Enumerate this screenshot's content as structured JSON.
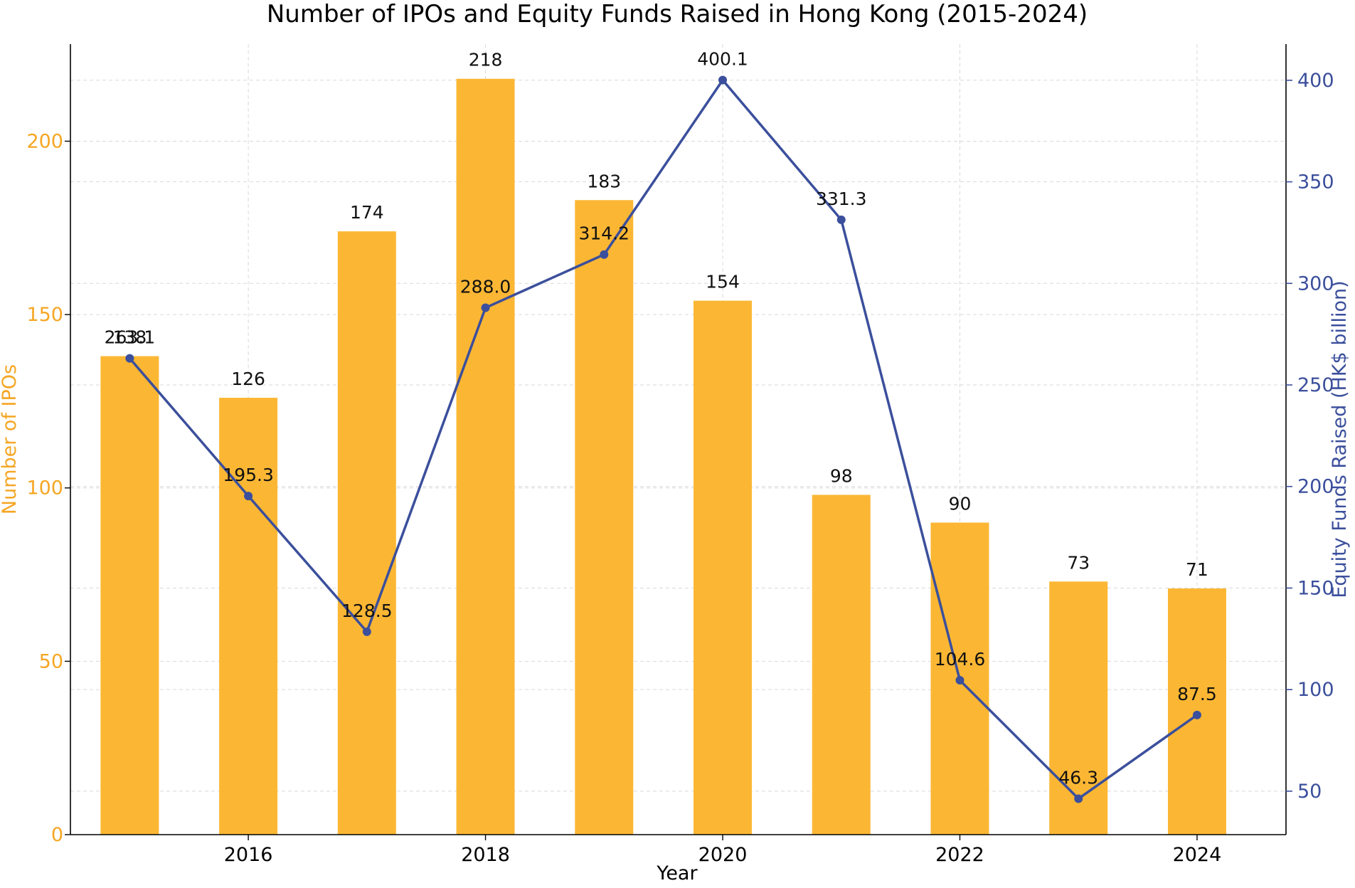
{
  "chart_data": {
    "type": "bar",
    "title": "Number of IPOs and Equity Funds Raised in Hong Kong (2015-2024)",
    "xlabel": "Year",
    "x": [
      2015,
      2016,
      2017,
      2018,
      2019,
      2020,
      2021,
      2022,
      2023,
      2024
    ],
    "x_tick_labels": [
      "2016",
      "2018",
      "2020",
      "2022",
      "2024"
    ],
    "x_tick_values": [
      2016,
      2018,
      2020,
      2022,
      2024
    ],
    "series": [
      {
        "type": "bar",
        "axis": "left",
        "color": "#FBB734",
        "values": [
          138,
          126,
          174,
          218,
          183,
          154,
          98,
          90,
          73,
          71
        ],
        "labels": [
          "138",
          "126",
          "174",
          "218",
          "183",
          "154",
          "98",
          "90",
          "73",
          "71"
        ]
      },
      {
        "type": "line",
        "axis": "right",
        "color": "#3B4F9C",
        "values": [
          263.1,
          195.3,
          128.5,
          288.0,
          314.2,
          400.1,
          331.3,
          104.6,
          46.3,
          87.5
        ],
        "labels": [
          "263.1",
          "195.3",
          "128.5",
          "288.0",
          "314.2",
          "400.1",
          "331.3",
          "104.6",
          "46.3",
          "87.5"
        ]
      }
    ],
    "y_left": {
      "label": "Number of IPOs",
      "color": "#F5A623",
      "range": [
        0,
        228
      ],
      "ticks": [
        0,
        50,
        100,
        150,
        200
      ]
    },
    "y_right": {
      "label": "Equity Funds Raised (HK$ billion)",
      "color": "#3B4F9C",
      "range": [
        28.6,
        417.8
      ],
      "ticks": [
        50,
        100,
        150,
        200,
        250,
        300,
        350,
        400
      ]
    },
    "grid": true
  }
}
